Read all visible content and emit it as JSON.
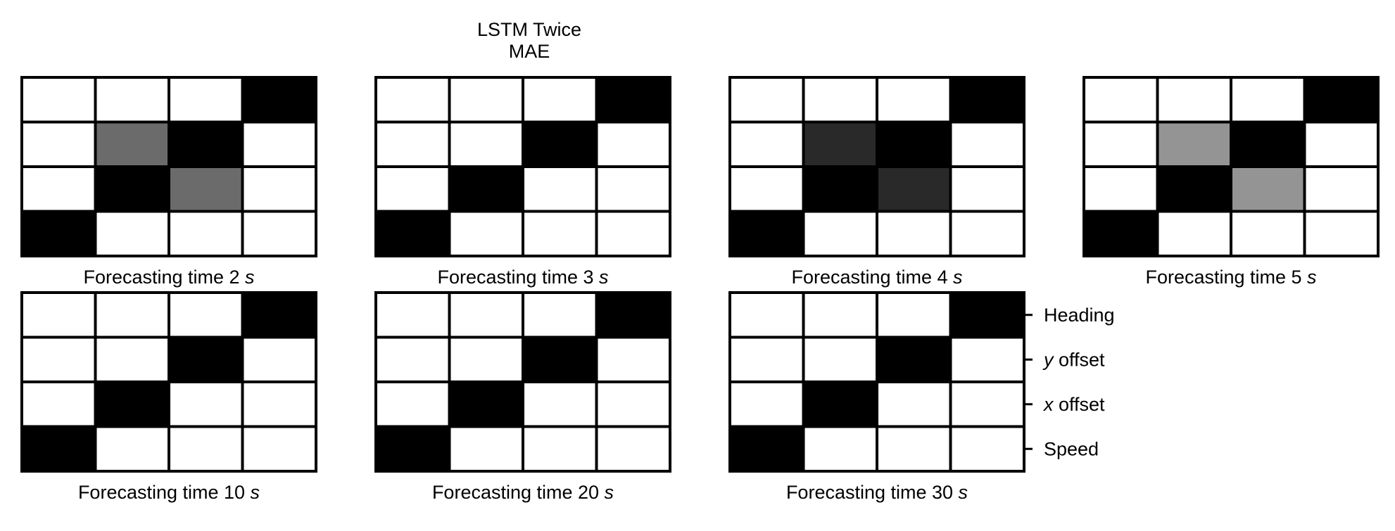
{
  "chart_data": {
    "type": "heatmap",
    "title": [
      "LSTM Twice",
      "MAE"
    ],
    "colormap": "grayscale: 0 = white, 1 = black",
    "columns": [
      "",
      "",
      "",
      ""
    ],
    "rows": [
      "Heading",
      "y offset",
      "x offset",
      "Speed"
    ],
    "row_label_parts": [
      {
        "italic": "",
        "text": "Heading"
      },
      {
        "italic": "y",
        "text": " offset"
      },
      {
        "italic": "x",
        "text": " offset"
      },
      {
        "italic": "",
        "text": "Speed"
      }
    ],
    "panels": [
      {
        "label": "Forecasting time 2",
        "unit": "s",
        "values": [
          [
            0,
            0,
            0,
            1
          ],
          [
            0,
            0.58,
            1,
            0
          ],
          [
            0,
            1,
            0.58,
            0
          ],
          [
            1,
            0,
            0,
            0
          ]
        ]
      },
      {
        "label": "Forecasting time 3",
        "unit": "s",
        "values": [
          [
            0,
            0,
            0,
            1
          ],
          [
            0,
            0,
            1,
            0
          ],
          [
            0,
            1,
            0,
            0
          ],
          [
            1,
            0,
            0,
            0
          ]
        ]
      },
      {
        "label": "Forecasting time 4",
        "unit": "s",
        "values": [
          [
            0,
            0,
            0,
            1
          ],
          [
            0,
            0.84,
            1,
            0
          ],
          [
            0,
            1,
            0.84,
            0
          ],
          [
            1,
            0,
            0,
            0
          ]
        ]
      },
      {
        "label": "Forecasting time 5",
        "unit": "s",
        "values": [
          [
            0,
            0,
            0,
            1
          ],
          [
            0,
            0.42,
            1,
            0
          ],
          [
            0,
            1,
            0.42,
            0
          ],
          [
            1,
            0,
            0,
            0
          ]
        ]
      },
      {
        "label": "Forecasting time 10",
        "unit": "s",
        "values": [
          [
            0,
            0,
            0,
            1
          ],
          [
            0,
            0,
            1,
            0
          ],
          [
            0,
            1,
            0,
            0
          ],
          [
            1,
            0,
            0,
            0
          ]
        ]
      },
      {
        "label": "Forecasting time 20",
        "unit": "s",
        "values": [
          [
            0,
            0,
            0,
            1
          ],
          [
            0,
            0,
            1,
            0
          ],
          [
            0,
            1,
            0,
            0
          ],
          [
            1,
            0,
            0,
            0
          ]
        ]
      },
      {
        "label": "Forecasting time 30",
        "unit": "s",
        "values": [
          [
            0,
            0,
            0,
            1
          ],
          [
            0,
            0,
            1,
            0
          ],
          [
            0,
            1,
            0,
            0
          ],
          [
            1,
            0,
            0,
            0
          ]
        ]
      }
    ],
    "row_labels_on_panel": 7,
    "grid": true,
    "legend": "none"
  }
}
